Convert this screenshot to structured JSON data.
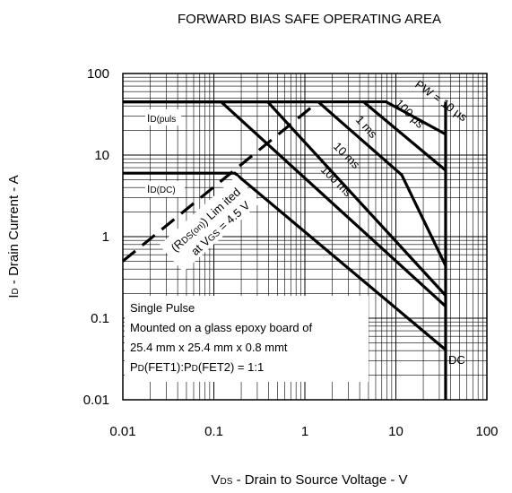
{
  "chart_data": {
    "type": "line",
    "title": "FORWARD BIAS SAFE OPERATING AREA",
    "x_label": {
      "main": "V",
      "sub": "DS",
      "rest": " - Drain to Source Voltage - V"
    },
    "y_label": {
      "main": "I",
      "sub": "D",
      "rest": " - Drain Current - A"
    },
    "log_x": true,
    "log_y": true,
    "grid": true,
    "minor_grid": true,
    "xlim": [
      0.01,
      100
    ],
    "ylim": [
      0.01,
      100
    ],
    "xticks": [
      0.01,
      0.1,
      1,
      10,
      100
    ],
    "yticks": [
      0.01,
      0.1,
      1,
      10,
      100
    ],
    "series": [
      {
        "name": "PW = 10 μs",
        "color": "#000000",
        "x": [
          0.01,
          7.8,
          35.2
        ],
        "values": [
          45,
          45,
          18
        ]
      },
      {
        "name": "100 μs",
        "color": "#000000",
        "x": [
          0.01,
          4.4,
          35.2
        ],
        "values": [
          45,
          45,
          6.5
        ]
      },
      {
        "name": "1 ms",
        "color": "#000000",
        "x": [
          0.01,
          1.4,
          11.6,
          35.2
        ],
        "values": [
          45,
          45,
          5.7,
          0.44
        ]
      },
      {
        "name": "10 ms",
        "color": "#000000",
        "x": [
          0.01,
          0.39,
          35.2
        ],
        "values": [
          45,
          45,
          0.19
        ]
      },
      {
        "name": "100 ms",
        "color": "#000000",
        "x": [
          0.01,
          0.12,
          35.2
        ],
        "values": [
          45,
          45,
          0.14
        ]
      },
      {
        "name": "DC",
        "color": "#000000",
        "x": [
          0.01,
          0.17,
          35.2
        ],
        "values": [
          6,
          6,
          0.041
        ]
      },
      {
        "color": "#000000",
        "x": [
          35.2,
          35.2
        ],
        "values": [
          45,
          0.01
        ]
      },
      {
        "color": "#000000",
        "dashed": true,
        "x": [
          0.01,
          1.4
        ],
        "values": [
          0.5,
          45
        ]
      }
    ],
    "annotations": {
      "id_pulse": {
        "main": "I",
        "sub": "D(puls"
      },
      "id_dc": {
        "main": "I",
        "sub": "D(DC)"
      },
      "rds_line1": {
        "pre": "(R",
        "sub": "DS(on)",
        "rest": ") Lim ited"
      },
      "rds_line2": {
        "pre": "at V",
        "sub": "GS",
        "rest": " = 4.5 V"
      },
      "box": [
        "Single Pulse",
        "Mounted on a glass epoxy board of",
        "25.4 mm x 25.4 mm x 0.8 mmt"
      ],
      "box_last": {
        "a": "P",
        "a_sub": "D",
        "b": "(FET1):P",
        "b_sub": "D",
        "c": "(FET2) = 1:1"
      }
    }
  }
}
